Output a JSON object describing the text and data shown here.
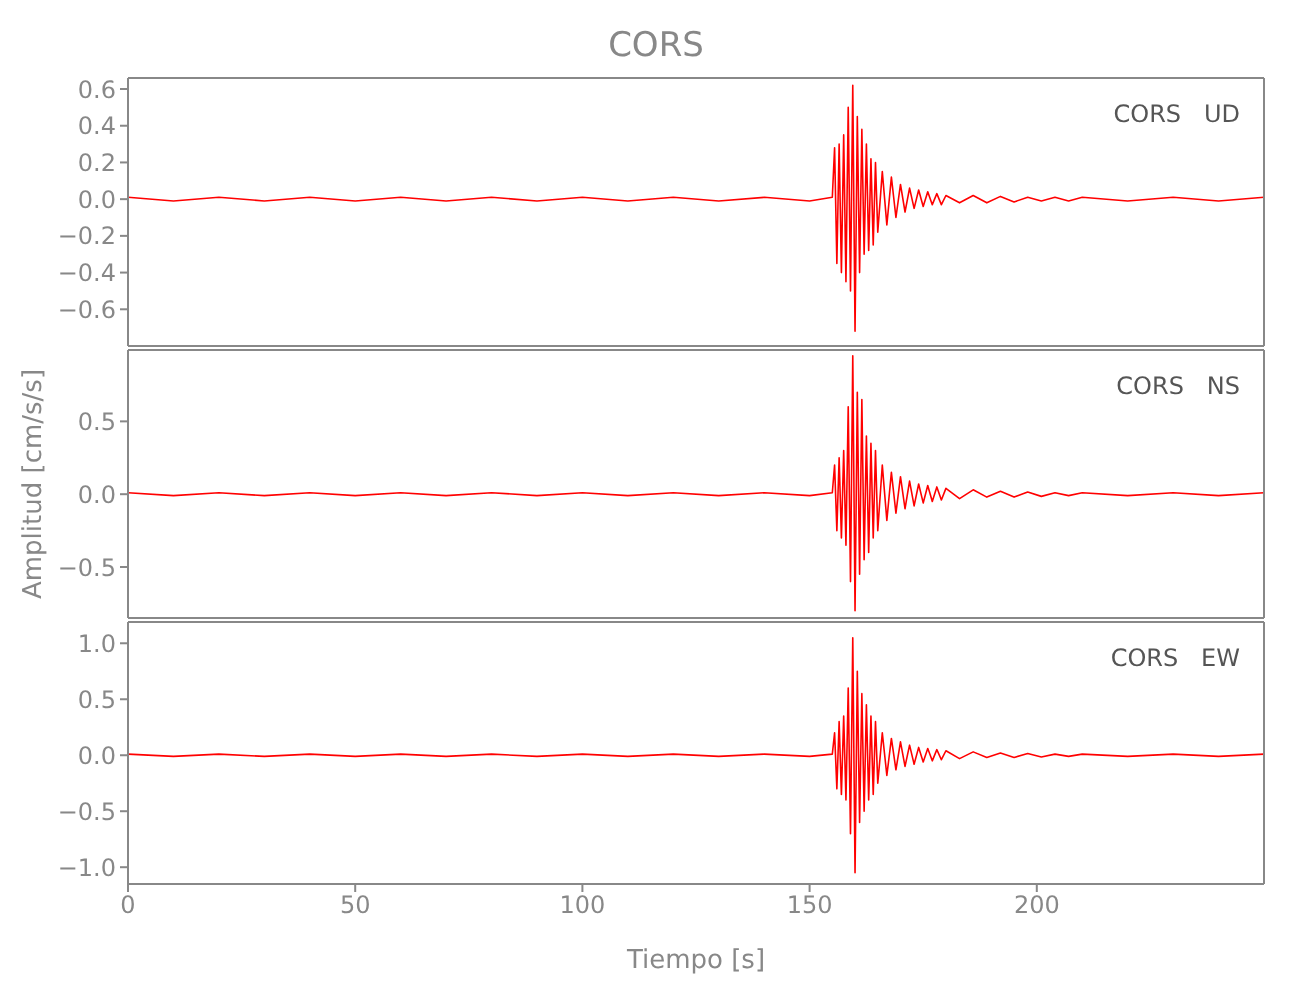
{
  "chart_data": [
    {
      "type": "line",
      "title": "CORS",
      "annotations": [
        "CORS   UD"
      ],
      "xlim": [
        0,
        250
      ],
      "xticks": [
        0,
        50,
        100,
        150,
        200
      ],
      "ylim": [
        -0.8,
        0.66
      ],
      "yticks": [
        -0.6,
        -0.4,
        -0.2,
        {
          "value": 0,
          "label": "0.0"
        },
        0.2,
        0.4,
        0.6
      ],
      "tick_labels": "y",
      "grid": false,
      "legend": false,
      "x": [
        0,
        10,
        20,
        30,
        40,
        50,
        60,
        70,
        80,
        90,
        100,
        110,
        120,
        130,
        140,
        150,
        155,
        155.5,
        156,
        156.5,
        157,
        157.5,
        158,
        158.5,
        159,
        159.5,
        160,
        160.5,
        161,
        161.5,
        162,
        162.5,
        163,
        163.5,
        164,
        164.5,
        165,
        166,
        167,
        168,
        169,
        170,
        171,
        172,
        173,
        174,
        175,
        176,
        177,
        178,
        179,
        180,
        183,
        186,
        189,
        192,
        195,
        198,
        201,
        204,
        207,
        210,
        220,
        230,
        240,
        250
      ],
      "series": [
        {
          "color": "#ff0000",
          "values": [
            0.01,
            -0.01,
            0.01,
            -0.01,
            0.01,
            -0.01,
            0.01,
            -0.01,
            0.01,
            -0.01,
            0.01,
            -0.01,
            0.01,
            -0.01,
            0.01,
            -0.01,
            0.01,
            0.28,
            -0.35,
            0.3,
            -0.4,
            0.35,
            -0.45,
            0.5,
            -0.5,
            0.62,
            -0.72,
            0.45,
            -0.4,
            0.38,
            -0.3,
            0.3,
            -0.28,
            0.22,
            -0.25,
            0.2,
            -0.18,
            0.15,
            -0.14,
            0.12,
            -0.1,
            0.08,
            -0.07,
            0.06,
            -0.05,
            0.05,
            -0.04,
            0.04,
            -0.03,
            0.03,
            -0.03,
            0.02,
            -0.02,
            0.02,
            -0.02,
            0.015,
            -0.015,
            0.01,
            -0.01,
            0.01,
            -0.01,
            0.01,
            -0.01,
            0.01,
            -0.01,
            0.01
          ]
        }
      ]
    },
    {
      "type": "line",
      "ylabel": "Amplitud [cm/s/s]",
      "annotations": [
        "CORS   NS"
      ],
      "xlim": [
        0,
        250
      ],
      "xticks": [
        0,
        50,
        100,
        150,
        200
      ],
      "ylim": [
        -0.85,
        0.99
      ],
      "yticks": [
        -0.5,
        {
          "value": 0,
          "label": "0.0"
        },
        0.5
      ],
      "tick_labels": "y",
      "grid": false,
      "legend": false,
      "x": [
        0,
        10,
        20,
        30,
        40,
        50,
        60,
        70,
        80,
        90,
        100,
        110,
        120,
        130,
        140,
        150,
        155,
        155.5,
        156,
        156.5,
        157,
        157.5,
        158,
        158.5,
        159,
        159.5,
        160,
        160.5,
        161,
        161.5,
        162,
        162.5,
        163,
        163.5,
        164,
        164.5,
        165,
        166,
        167,
        168,
        169,
        170,
        171,
        172,
        173,
        174,
        175,
        176,
        177,
        178,
        179,
        180,
        183,
        186,
        189,
        192,
        195,
        198,
        201,
        204,
        207,
        210,
        220,
        230,
        240,
        250
      ],
      "series": [
        {
          "color": "#ff0000",
          "values": [
            0.01,
            -0.01,
            0.01,
            -0.01,
            0.01,
            -0.01,
            0.01,
            -0.01,
            0.01,
            -0.01,
            0.01,
            -0.01,
            0.01,
            -0.01,
            0.01,
            -0.01,
            0.01,
            0.2,
            -0.25,
            0.25,
            -0.3,
            0.3,
            -0.35,
            0.6,
            -0.6,
            0.95,
            -0.8,
            0.7,
            -0.55,
            0.65,
            -0.45,
            0.4,
            -0.4,
            0.35,
            -0.3,
            0.3,
            -0.25,
            0.2,
            -0.18,
            0.15,
            -0.13,
            0.12,
            -0.1,
            0.09,
            -0.08,
            0.07,
            -0.06,
            0.06,
            -0.05,
            0.05,
            -0.04,
            0.04,
            -0.03,
            0.03,
            -0.02,
            0.02,
            -0.02,
            0.015,
            -0.015,
            0.01,
            -0.01,
            0.01,
            -0.01,
            0.01,
            -0.01,
            0.01
          ]
        }
      ]
    },
    {
      "type": "line",
      "xlabel": "Tiempo [s]",
      "annotations": [
        "CORS   EW"
      ],
      "xlim": [
        0,
        250
      ],
      "xticks": [
        0,
        50,
        100,
        150,
        200
      ],
      "ylim": [
        -1.15,
        1.19
      ],
      "yticks": [
        {
          "value": -1,
          "label": "−1.0"
        },
        -0.5,
        {
          "value": 0,
          "label": "0.0"
        },
        0.5,
        {
          "value": 1,
          "label": "1.0"
        }
      ],
      "grid": false,
      "legend": false,
      "x": [
        0,
        10,
        20,
        30,
        40,
        50,
        60,
        70,
        80,
        90,
        100,
        110,
        120,
        130,
        140,
        150,
        155,
        155.5,
        156,
        156.5,
        157,
        157.5,
        158,
        158.5,
        159,
        159.5,
        160,
        160.5,
        161,
        161.5,
        162,
        162.5,
        163,
        163.5,
        164,
        164.5,
        165,
        166,
        167,
        168,
        169,
        170,
        171,
        172,
        173,
        174,
        175,
        176,
        177,
        178,
        179,
        180,
        183,
        186,
        189,
        192,
        195,
        198,
        201,
        204,
        207,
        210,
        220,
        230,
        240,
        250
      ],
      "series": [
        {
          "color": "#ff0000",
          "values": [
            0.01,
            -0.01,
            0.01,
            -0.01,
            0.01,
            -0.01,
            0.01,
            -0.01,
            0.01,
            -0.01,
            0.01,
            -0.01,
            0.01,
            -0.01,
            0.01,
            -0.01,
            0.01,
            0.2,
            -0.3,
            0.3,
            -0.35,
            0.35,
            -0.4,
            0.6,
            -0.7,
            1.05,
            -1.05,
            0.75,
            -0.6,
            0.55,
            -0.5,
            0.45,
            -0.4,
            0.35,
            -0.35,
            0.3,
            -0.25,
            0.2,
            -0.18,
            0.15,
            -0.13,
            0.12,
            -0.1,
            0.09,
            -0.08,
            0.07,
            -0.06,
            0.06,
            -0.05,
            0.05,
            -0.04,
            0.04,
            -0.03,
            0.03,
            -0.02,
            0.02,
            -0.02,
            0.015,
            -0.015,
            0.01,
            -0.01,
            0.01,
            -0.01,
            0.01,
            -0.01,
            0.01
          ]
        }
      ]
    }
  ]
}
